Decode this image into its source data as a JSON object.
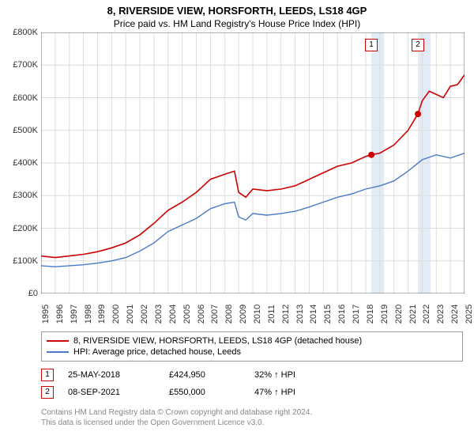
{
  "title": "8, RIVERSIDE VIEW, HORSFORTH, LEEDS, LS18 4GP",
  "subtitle": "Price paid vs. HM Land Registry's House Price Index (HPI)",
  "chart": {
    "type": "line",
    "ylim": [
      0,
      800000
    ],
    "ytick_step": 100000,
    "ytick_labels": [
      "£0",
      "£100K",
      "£200K",
      "£300K",
      "£400K",
      "£500K",
      "£600K",
      "£700K",
      "£800K"
    ],
    "xlim": [
      1995,
      2025
    ],
    "xtick_step": 1,
    "xtick_labels": [
      "1995",
      "1996",
      "1997",
      "1998",
      "1999",
      "2000",
      "2001",
      "2002",
      "2003",
      "2004",
      "2005",
      "2006",
      "2007",
      "2008",
      "2009",
      "2010",
      "2011",
      "2012",
      "2013",
      "2014",
      "2015",
      "2016",
      "2017",
      "2018",
      "2019",
      "2020",
      "2021",
      "2022",
      "2023",
      "2024",
      "2025"
    ],
    "background_color": "#ffffff",
    "grid_color": "#dddddd",
    "axis_color": "#666666",
    "highlight_band_color": "rgba(173,200,230,0.35)",
    "highlight_bands": [
      {
        "from": 2018.4,
        "to": 2019.3
      },
      {
        "from": 2021.7,
        "to": 2022.6
      }
    ],
    "series": [
      {
        "name": "property",
        "label": "8, RIVERSIDE VIEW, HORSFORTH, LEEDS, LS18 4GP (detached house)",
        "color": "#cc0000",
        "line_width": 1.6,
        "data": [
          [
            1995,
            115000
          ],
          [
            1996,
            110000
          ],
          [
            1997,
            115000
          ],
          [
            1998,
            120000
          ],
          [
            1999,
            128000
          ],
          [
            2000,
            140000
          ],
          [
            2001,
            155000
          ],
          [
            2002,
            180000
          ],
          [
            2003,
            215000
          ],
          [
            2004,
            255000
          ],
          [
            2005,
            280000
          ],
          [
            2006,
            310000
          ],
          [
            2007,
            350000
          ],
          [
            2008,
            365000
          ],
          [
            2008.7,
            375000
          ],
          [
            2009,
            310000
          ],
          [
            2009.5,
            295000
          ],
          [
            2010,
            320000
          ],
          [
            2011,
            315000
          ],
          [
            2012,
            320000
          ],
          [
            2013,
            330000
          ],
          [
            2014,
            350000
          ],
          [
            2015,
            370000
          ],
          [
            2016,
            390000
          ],
          [
            2017,
            400000
          ],
          [
            2018,
            420000
          ],
          [
            2018.4,
            424950
          ],
          [
            2019,
            430000
          ],
          [
            2020,
            455000
          ],
          [
            2021,
            500000
          ],
          [
            2021.7,
            550000
          ],
          [
            2022,
            590000
          ],
          [
            2022.5,
            620000
          ],
          [
            2023,
            610000
          ],
          [
            2023.5,
            600000
          ],
          [
            2024,
            635000
          ],
          [
            2024.5,
            640000
          ],
          [
            2025,
            670000
          ]
        ]
      },
      {
        "name": "hpi",
        "label": "HPI: Average price, detached house, Leeds",
        "color": "#4a7bc8",
        "line_width": 1.4,
        "data": [
          [
            1995,
            85000
          ],
          [
            1996,
            82000
          ],
          [
            1997,
            85000
          ],
          [
            1998,
            88000
          ],
          [
            1999,
            93000
          ],
          [
            2000,
            100000
          ],
          [
            2001,
            110000
          ],
          [
            2002,
            130000
          ],
          [
            2003,
            155000
          ],
          [
            2004,
            190000
          ],
          [
            2005,
            210000
          ],
          [
            2006,
            230000
          ],
          [
            2007,
            260000
          ],
          [
            2008,
            275000
          ],
          [
            2008.7,
            280000
          ],
          [
            2009,
            235000
          ],
          [
            2009.5,
            225000
          ],
          [
            2010,
            245000
          ],
          [
            2011,
            240000
          ],
          [
            2012,
            245000
          ],
          [
            2013,
            252000
          ],
          [
            2014,
            265000
          ],
          [
            2015,
            280000
          ],
          [
            2016,
            295000
          ],
          [
            2017,
            305000
          ],
          [
            2018,
            320000
          ],
          [
            2019,
            330000
          ],
          [
            2020,
            345000
          ],
          [
            2021,
            375000
          ],
          [
            2022,
            410000
          ],
          [
            2023,
            425000
          ],
          [
            2024,
            415000
          ],
          [
            2025,
            430000
          ]
        ]
      }
    ],
    "sale_markers": [
      {
        "n": "1",
        "x": 2018.4,
        "y": 424950,
        "color": "#cc0000"
      },
      {
        "n": "2",
        "x": 2021.7,
        "y": 550000,
        "color": "#cc0000"
      }
    ]
  },
  "legend": {
    "items": [
      {
        "color": "#cc0000",
        "label": "8, RIVERSIDE VIEW, HORSFORTH, LEEDS, LS18 4GP (detached house)"
      },
      {
        "color": "#4a7bc8",
        "label": "HPI: Average price, detached house, Leeds"
      }
    ]
  },
  "sales": [
    {
      "n": "1",
      "date": "25-MAY-2018",
      "price": "£424,950",
      "pct": "32% ↑ HPI"
    },
    {
      "n": "2",
      "date": "08-SEP-2021",
      "price": "£550,000",
      "pct": "47% ↑ HPI"
    }
  ],
  "footer_line1": "Contains HM Land Registry data © Crown copyright and database right 2024.",
  "footer_line2": "This data is licensed under the Open Government Licence v3.0."
}
